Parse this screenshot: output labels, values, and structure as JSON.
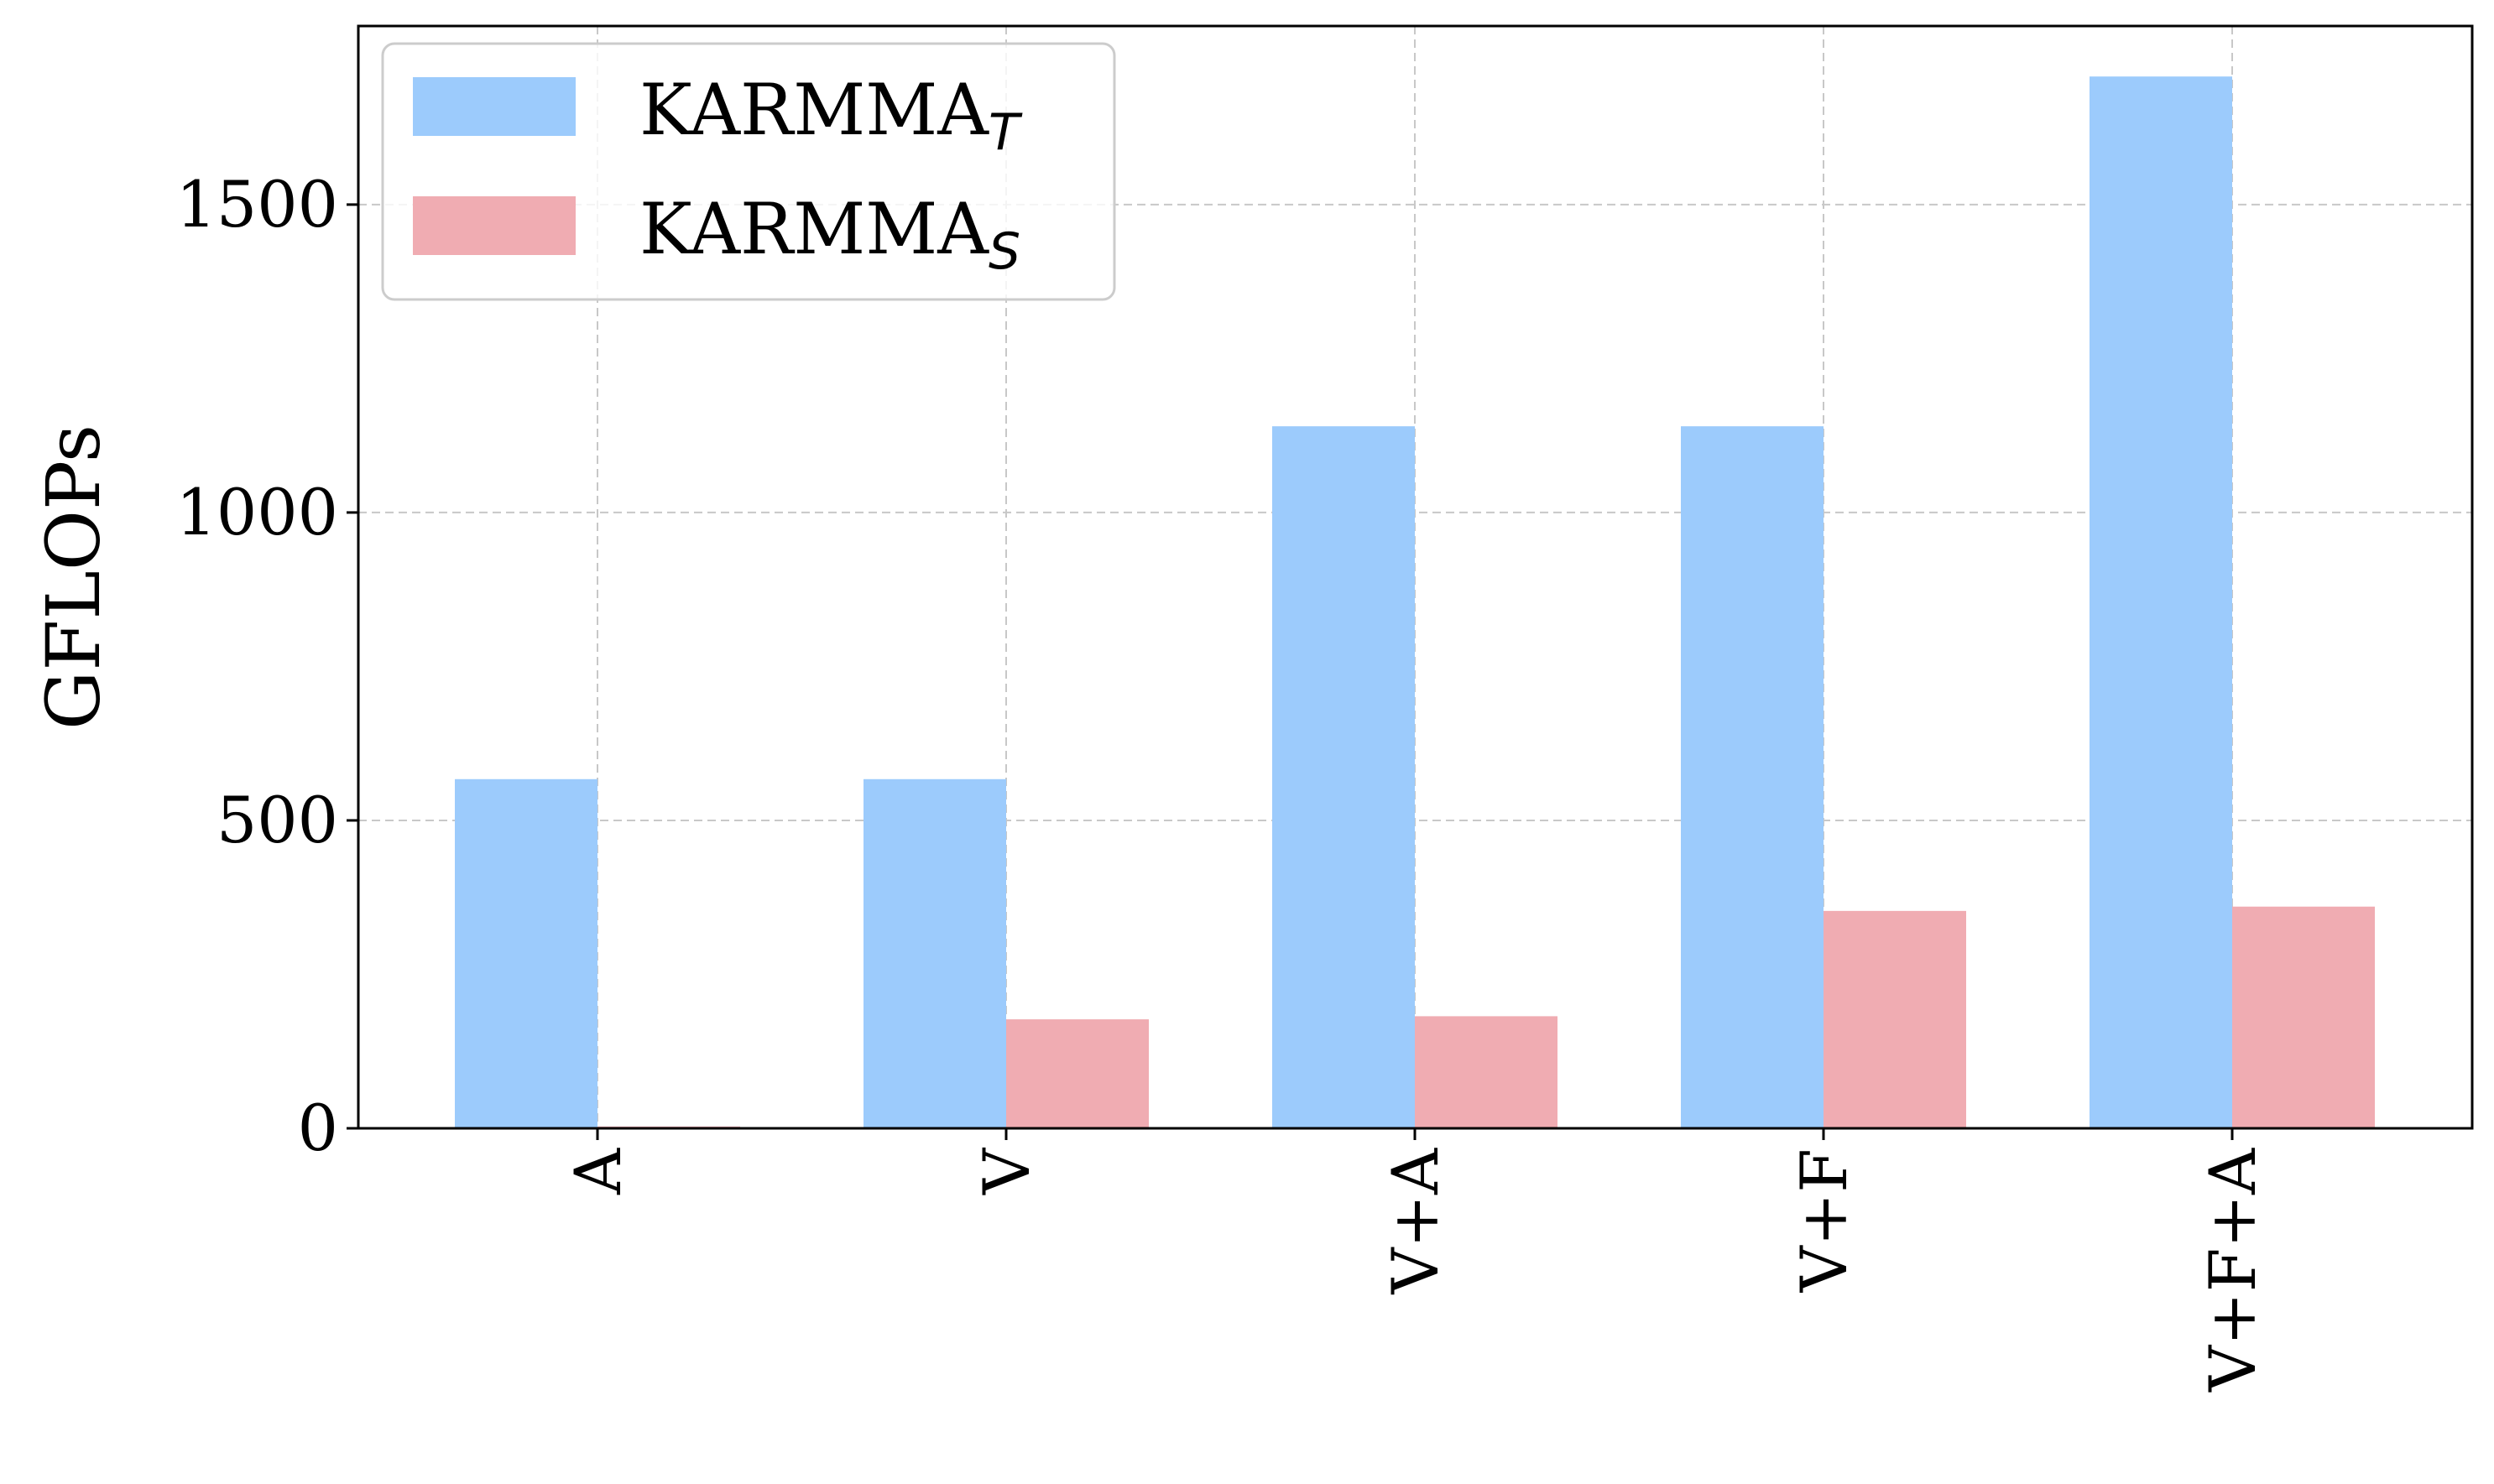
{
  "chart_data": {
    "type": "bar",
    "categories": [
      "A",
      "V",
      "V+A",
      "V+F",
      "V+F+A"
    ],
    "series": [
      {
        "name": "KARMMA",
        "subscript": "T",
        "color": "#9ccbfc",
        "values": [
          567,
          567,
          1140,
          1140,
          1708
        ]
      },
      {
        "name": "KARMMA",
        "subscript": "S",
        "color": "#f0acb2",
        "values": [
          3,
          177,
          182,
          353,
          360
        ]
      }
    ],
    "xlabel": "",
    "ylabel": "GFLOPs",
    "ylim": [
      0,
      1790
    ],
    "yticks": [
      0,
      500,
      1000,
      1500
    ],
    "grid": true,
    "legend_position": "top-left"
  }
}
